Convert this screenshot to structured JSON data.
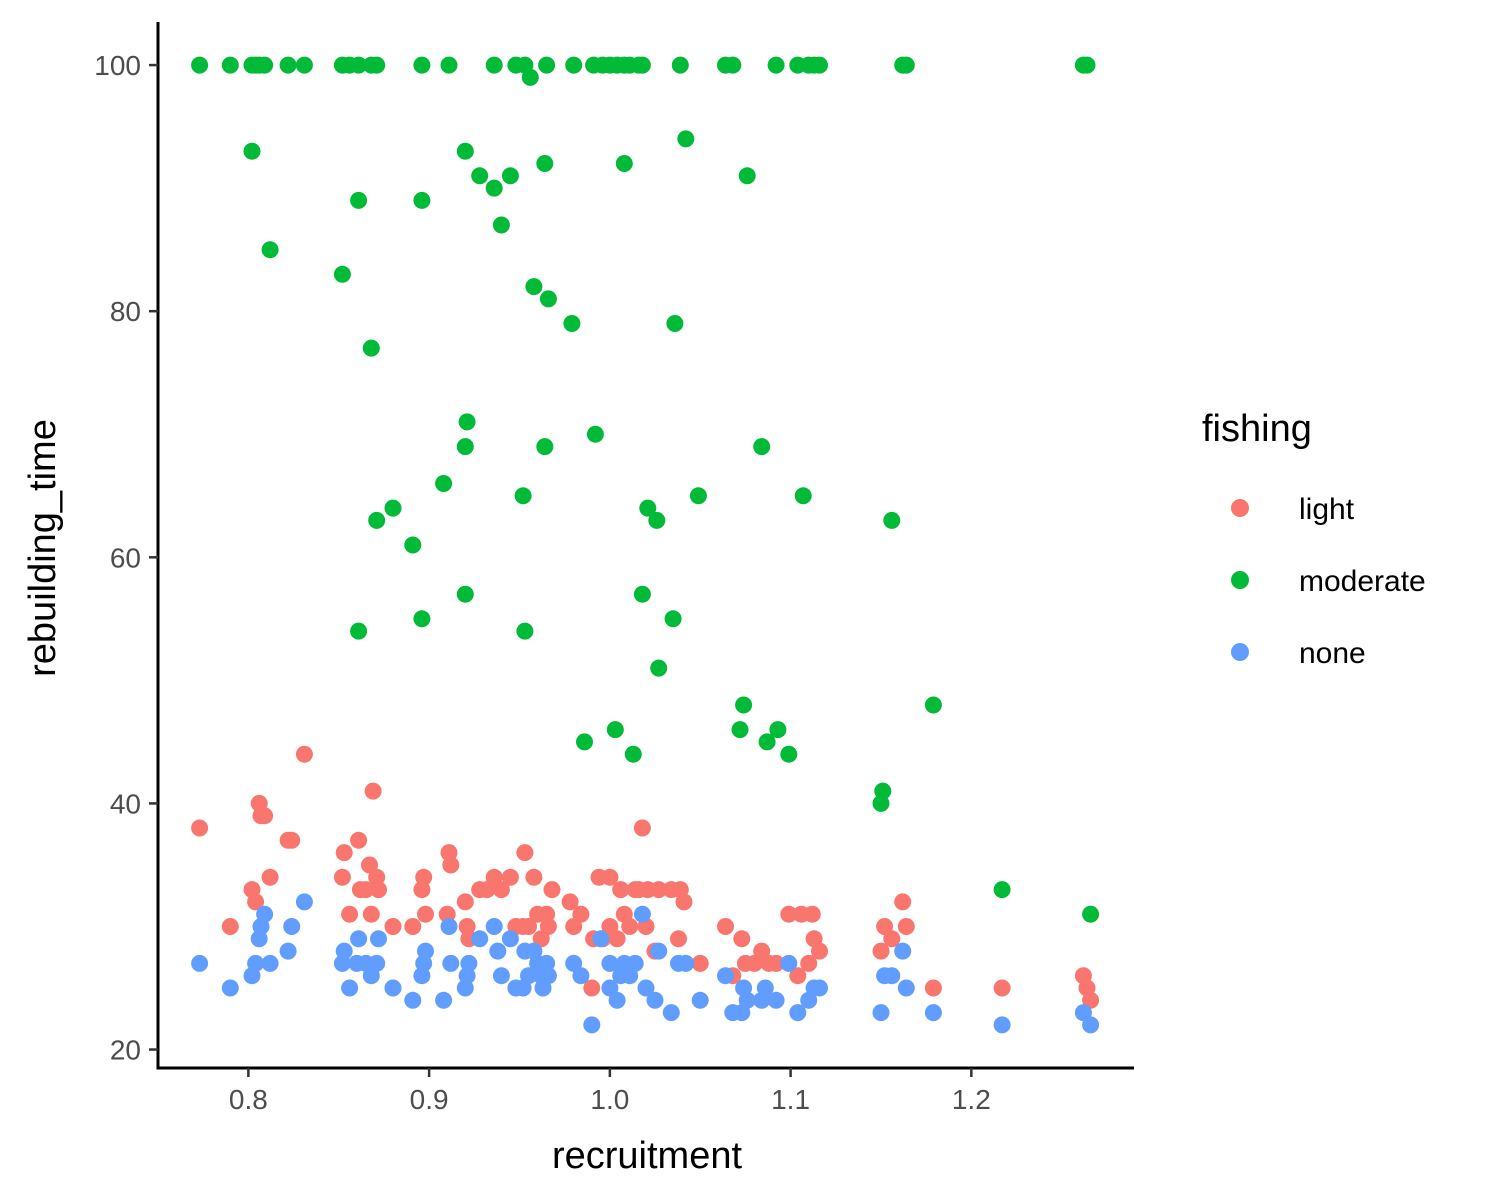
{
  "chart_data": {
    "type": "scatter",
    "xlabel": "recruitment",
    "ylabel": "rebuilding_time",
    "xlim": [
      0.75,
      1.29
    ],
    "ylim": [
      18.5,
      103.5
    ],
    "x_ticks": [
      0.8,
      0.9,
      1.0,
      1.1,
      1.2
    ],
    "x_tick_labels": [
      "0.8",
      "0.9",
      "1.0",
      "1.1",
      "1.2"
    ],
    "y_ticks": [
      20,
      40,
      60,
      80,
      100
    ],
    "y_tick_labels": [
      "20",
      "40",
      "60",
      "80",
      "100"
    ],
    "grid": false,
    "legend": {
      "title": "fishing",
      "position": "right"
    },
    "series": [
      {
        "name": "light",
        "color": "#F8766D",
        "points": [
          [
            0.773,
            38
          ],
          [
            0.79,
            30
          ],
          [
            0.802,
            33
          ],
          [
            0.804,
            32
          ],
          [
            0.806,
            40
          ],
          [
            0.807,
            39
          ],
          [
            0.809,
            39
          ],
          [
            0.812,
            34
          ],
          [
            0.822,
            37
          ],
          [
            0.824,
            37
          ],
          [
            0.831,
            44
          ],
          [
            0.852,
            34
          ],
          [
            0.853,
            36
          ],
          [
            0.856,
            31
          ],
          [
            0.861,
            37
          ],
          [
            0.862,
            33
          ],
          [
            0.865,
            33
          ],
          [
            0.867,
            35
          ],
          [
            0.868,
            31
          ],
          [
            0.869,
            41
          ],
          [
            0.871,
            34
          ],
          [
            0.872,
            33
          ],
          [
            0.88,
            30
          ],
          [
            0.891,
            30
          ],
          [
            0.896,
            33
          ],
          [
            0.897,
            34
          ],
          [
            0.898,
            31
          ],
          [
            0.91,
            31
          ],
          [
            0.911,
            36
          ],
          [
            0.912,
            35
          ],
          [
            0.92,
            32
          ],
          [
            0.921,
            30
          ],
          [
            0.922,
            29
          ],
          [
            0.928,
            33
          ],
          [
            0.932,
            33
          ],
          [
            0.936,
            34
          ],
          [
            0.94,
            33
          ],
          [
            0.945,
            34
          ],
          [
            0.948,
            30
          ],
          [
            0.952,
            30
          ],
          [
            0.953,
            36
          ],
          [
            0.955,
            30
          ],
          [
            0.958,
            34
          ],
          [
            0.96,
            31
          ],
          [
            0.962,
            29
          ],
          [
            0.965,
            31
          ],
          [
            0.966,
            30
          ],
          [
            0.968,
            33
          ],
          [
            0.978,
            32
          ],
          [
            0.98,
            30
          ],
          [
            0.984,
            31
          ],
          [
            0.99,
            25
          ],
          [
            0.991,
            29
          ],
          [
            0.994,
            34
          ],
          [
            0.996,
            29
          ],
          [
            1.0,
            34
          ],
          [
            1.0,
            30
          ],
          [
            1.004,
            29
          ],
          [
            1.006,
            33
          ],
          [
            1.008,
            31
          ],
          [
            1.011,
            30
          ],
          [
            1.014,
            33
          ],
          [
            1.016,
            33
          ],
          [
            1.018,
            38
          ],
          [
            1.02,
            30
          ],
          [
            1.021,
            33
          ],
          [
            1.025,
            28
          ],
          [
            1.027,
            33
          ],
          [
            1.034,
            33
          ],
          [
            1.038,
            29
          ],
          [
            1.039,
            33
          ],
          [
            1.041,
            32
          ],
          [
            1.05,
            27
          ],
          [
            1.064,
            30
          ],
          [
            1.068,
            26
          ],
          [
            1.073,
            29
          ],
          [
            1.075,
            27
          ],
          [
            1.08,
            27
          ],
          [
            1.084,
            28
          ],
          [
            1.088,
            27
          ],
          [
            1.092,
            27
          ],
          [
            1.099,
            31
          ],
          [
            1.104,
            26
          ],
          [
            1.106,
            31
          ],
          [
            1.11,
            27
          ],
          [
            1.112,
            31
          ],
          [
            1.113,
            29
          ],
          [
            1.116,
            28
          ],
          [
            1.15,
            28
          ],
          [
            1.152,
            30
          ],
          [
            1.156,
            29
          ],
          [
            1.162,
            32
          ],
          [
            1.164,
            30
          ],
          [
            1.179,
            25
          ],
          [
            1.217,
            25
          ],
          [
            1.262,
            26
          ],
          [
            1.264,
            25
          ],
          [
            1.266,
            24
          ]
        ]
      },
      {
        "name": "moderate",
        "color": "#00BA38",
        "points": [
          [
            0.773,
            100
          ],
          [
            0.79,
            100
          ],
          [
            0.802,
            100
          ],
          [
            0.804,
            100
          ],
          [
            0.806,
            100
          ],
          [
            0.809,
            100
          ],
          [
            0.822,
            100
          ],
          [
            0.831,
            100
          ],
          [
            0.852,
            100
          ],
          [
            0.856,
            100
          ],
          [
            0.861,
            100
          ],
          [
            0.868,
            100
          ],
          [
            0.871,
            100
          ],
          [
            0.896,
            100
          ],
          [
            0.911,
            100
          ],
          [
            0.936,
            100
          ],
          [
            0.948,
            100
          ],
          [
            0.953,
            100
          ],
          [
            0.956,
            99
          ],
          [
            0.965,
            100
          ],
          [
            0.98,
            100
          ],
          [
            0.991,
            100
          ],
          [
            0.996,
            100
          ],
          [
            1.0,
            100
          ],
          [
            1.004,
            100
          ],
          [
            1.008,
            100
          ],
          [
            1.011,
            100
          ],
          [
            1.016,
            100
          ],
          [
            1.018,
            100
          ],
          [
            1.039,
            100
          ],
          [
            1.064,
            100
          ],
          [
            1.068,
            100
          ],
          [
            1.092,
            100
          ],
          [
            1.104,
            100
          ],
          [
            1.11,
            100
          ],
          [
            1.113,
            100
          ],
          [
            1.116,
            100
          ],
          [
            1.162,
            100
          ],
          [
            1.164,
            100
          ],
          [
            1.262,
            100
          ],
          [
            1.264,
            100
          ],
          [
            0.802,
            93
          ],
          [
            0.812,
            85
          ],
          [
            0.852,
            83
          ],
          [
            0.861,
            89
          ],
          [
            0.868,
            77
          ],
          [
            0.871,
            63
          ],
          [
            0.88,
            64
          ],
          [
            0.891,
            61
          ],
          [
            0.896,
            55
          ],
          [
            0.896,
            89
          ],
          [
            0.908,
            66
          ],
          [
            0.92,
            93
          ],
          [
            0.921,
            71
          ],
          [
            0.92,
            69
          ],
          [
            0.92,
            57
          ],
          [
            0.861,
            54
          ],
          [
            0.928,
            91
          ],
          [
            0.936,
            90
          ],
          [
            0.94,
            87
          ],
          [
            0.945,
            91
          ],
          [
            0.952,
            65
          ],
          [
            0.953,
            54
          ],
          [
            0.958,
            82
          ],
          [
            0.964,
            92
          ],
          [
            0.964,
            69
          ],
          [
            0.966,
            81
          ],
          [
            0.979,
            79
          ],
          [
            0.986,
            45
          ],
          [
            0.992,
            70
          ],
          [
            1.003,
            46
          ],
          [
            1.008,
            92
          ],
          [
            1.013,
            44
          ],
          [
            1.018,
            57
          ],
          [
            1.021,
            64
          ],
          [
            1.026,
            63
          ],
          [
            1.027,
            51
          ],
          [
            1.035,
            55
          ],
          [
            1.036,
            79
          ],
          [
            1.042,
            94
          ],
          [
            1.049,
            65
          ],
          [
            1.072,
            46
          ],
          [
            1.074,
            48
          ],
          [
            1.076,
            91
          ],
          [
            1.084,
            69
          ],
          [
            1.087,
            45
          ],
          [
            1.093,
            46
          ],
          [
            1.099,
            44
          ],
          [
            1.107,
            65
          ],
          [
            1.15,
            40
          ],
          [
            1.151,
            41
          ],
          [
            1.156,
            63
          ],
          [
            1.179,
            48
          ],
          [
            1.217,
            33
          ],
          [
            1.266,
            31
          ]
        ]
      },
      {
        "name": "none",
        "color": "#619CFF",
        "points": [
          [
            0.773,
            27
          ],
          [
            0.79,
            25
          ],
          [
            0.802,
            26
          ],
          [
            0.804,
            27
          ],
          [
            0.806,
            29
          ],
          [
            0.807,
            30
          ],
          [
            0.809,
            31
          ],
          [
            0.812,
            27
          ],
          [
            0.822,
            28
          ],
          [
            0.824,
            30
          ],
          [
            0.831,
            32
          ],
          [
            0.852,
            27
          ],
          [
            0.853,
            28
          ],
          [
            0.856,
            25
          ],
          [
            0.86,
            27
          ],
          [
            0.861,
            29
          ],
          [
            0.865,
            27
          ],
          [
            0.868,
            26
          ],
          [
            0.871,
            27
          ],
          [
            0.872,
            29
          ],
          [
            0.88,
            25
          ],
          [
            0.891,
            24
          ],
          [
            0.896,
            26
          ],
          [
            0.897,
            27
          ],
          [
            0.898,
            28
          ],
          [
            0.908,
            24
          ],
          [
            0.911,
            30
          ],
          [
            0.912,
            27
          ],
          [
            0.92,
            25
          ],
          [
            0.921,
            26
          ],
          [
            0.922,
            27
          ],
          [
            0.928,
            29
          ],
          [
            0.936,
            30
          ],
          [
            0.938,
            28
          ],
          [
            0.94,
            26
          ],
          [
            0.945,
            29
          ],
          [
            0.948,
            25
          ],
          [
            0.952,
            25
          ],
          [
            0.953,
            28
          ],
          [
            0.955,
            26
          ],
          [
            0.958,
            28
          ],
          [
            0.96,
            27
          ],
          [
            0.962,
            26
          ],
          [
            0.963,
            25
          ],
          [
            0.965,
            27
          ],
          [
            0.966,
            26
          ],
          [
            0.98,
            27
          ],
          [
            0.984,
            26
          ],
          [
            0.99,
            22
          ],
          [
            0.995,
            29
          ],
          [
            1.0,
            27
          ],
          [
            1.0,
            25
          ],
          [
            1.004,
            24
          ],
          [
            1.006,
            26
          ],
          [
            1.008,
            27
          ],
          [
            1.011,
            26
          ],
          [
            1.014,
            27
          ],
          [
            1.018,
            31
          ],
          [
            1.02,
            25
          ],
          [
            1.025,
            24
          ],
          [
            1.027,
            28
          ],
          [
            1.034,
            23
          ],
          [
            1.038,
            27
          ],
          [
            1.042,
            27
          ],
          [
            1.05,
            24
          ],
          [
            1.064,
            26
          ],
          [
            1.068,
            23
          ],
          [
            1.073,
            23
          ],
          [
            1.074,
            25
          ],
          [
            1.076,
            24
          ],
          [
            1.084,
            24
          ],
          [
            1.086,
            25
          ],
          [
            1.092,
            24
          ],
          [
            1.099,
            27
          ],
          [
            1.104,
            23
          ],
          [
            1.11,
            24
          ],
          [
            1.113,
            25
          ],
          [
            1.116,
            25
          ],
          [
            1.15,
            23
          ],
          [
            1.152,
            26
          ],
          [
            1.156,
            26
          ],
          [
            1.162,
            28
          ],
          [
            1.164,
            25
          ],
          [
            1.179,
            23
          ],
          [
            1.217,
            22
          ],
          [
            1.262,
            23
          ],
          [
            1.266,
            22
          ]
        ]
      }
    ]
  }
}
